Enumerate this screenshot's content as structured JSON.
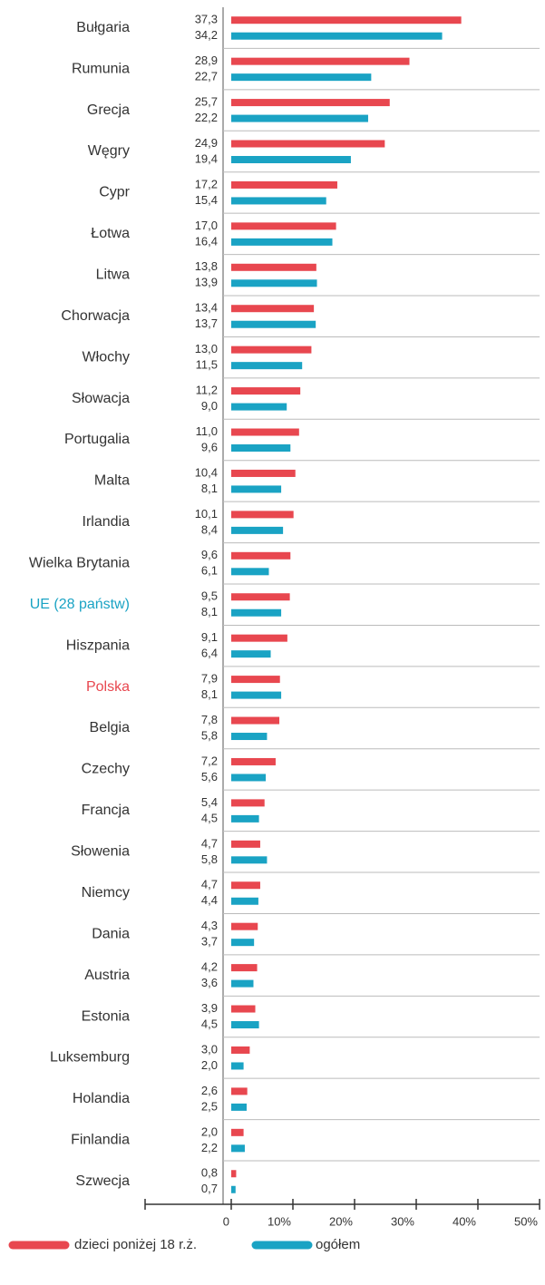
{
  "chart_data": {
    "type": "bar",
    "orientation": "horizontal",
    "categories": [
      "Bułgaria",
      "Rumunia",
      "Grecja",
      "Węgry",
      "Cypr",
      "Łotwa",
      "Litwa",
      "Chorwacja",
      "Włochy",
      "Słowacja",
      "Portugalia",
      "Malta",
      "Irlandia",
      "Wielka Brytania",
      "UE (28 państw)",
      "Hiszpania",
      "Polska",
      "Belgia",
      "Czechy",
      "Francja",
      "Słowenia",
      "Niemcy",
      "Dania",
      "Austria",
      "Estonia",
      "Luksemburg",
      "Holandia",
      "Finlandia",
      "Szwecja"
    ],
    "label_colors": [
      "#333333",
      "#333333",
      "#333333",
      "#333333",
      "#333333",
      "#333333",
      "#333333",
      "#333333",
      "#333333",
      "#333333",
      "#333333",
      "#333333",
      "#333333",
      "#333333",
      "#1aa3c4",
      "#333333",
      "#e8474f",
      "#333333",
      "#333333",
      "#333333",
      "#333333",
      "#333333",
      "#333333",
      "#333333",
      "#333333",
      "#333333",
      "#333333",
      "#333333",
      "#333333"
    ],
    "series": [
      {
        "name": "dzieci poniżej 18 r.ż.",
        "color": "#e8474f",
        "values": [
          37.3,
          28.9,
          25.7,
          24.9,
          17.2,
          17.0,
          13.8,
          13.4,
          13.0,
          11.2,
          11.0,
          10.4,
          10.1,
          9.6,
          9.5,
          9.1,
          7.9,
          7.8,
          7.2,
          5.4,
          4.7,
          4.7,
          4.3,
          4.2,
          3.9,
          3.0,
          2.6,
          2.0,
          0.8
        ],
        "value_labels": [
          "37,3",
          "28,9",
          "25,7",
          "24,9",
          "17,2",
          "17,0",
          "13,8",
          "13,4",
          "13,0",
          "11,2",
          "11,0",
          "10,4",
          "10,1",
          "9,6",
          "9,5",
          "9,1",
          "7,9",
          "7,8",
          "7,2",
          "5,4",
          "4,7",
          "4,7",
          "4,3",
          "4,2",
          "3,9",
          "3,0",
          "2,6",
          "2,0",
          "0,8"
        ]
      },
      {
        "name": "ogółem",
        "color": "#1aa3c4",
        "values": [
          34.2,
          22.7,
          22.2,
          19.4,
          15.4,
          16.4,
          13.9,
          13.7,
          11.5,
          9.0,
          9.6,
          8.1,
          8.4,
          6.1,
          8.1,
          6.4,
          8.1,
          5.8,
          5.6,
          4.5,
          5.8,
          4.4,
          3.7,
          3.6,
          4.5,
          2.0,
          2.5,
          2.2,
          0.7
        ],
        "value_labels": [
          "34,2",
          "22,7",
          "22,2",
          "19,4",
          "15,4",
          "16,4",
          "13,9",
          "13,7",
          "11,5",
          "9,0",
          "9,6",
          "8,1",
          "8,4",
          "6,1",
          "8,1",
          "6,4",
          "8,1",
          "5,8",
          "5,6",
          "4,5",
          "5,8",
          "4,4",
          "3,7",
          "3,6",
          "4,5",
          "2,0",
          "2,5",
          "2,2",
          "0,7"
        ]
      }
    ],
    "xlim": [
      0,
      50
    ],
    "xticks": [
      0,
      {
        "value": 10,
        "label": "10%"
      },
      {
        "value": 20,
        "label": "20%"
      },
      {
        "value": 30,
        "label": "30%"
      },
      {
        "value": 40,
        "label": "40%"
      },
      {
        "value": 50,
        "label": "50%"
      }
    ],
    "legend": "bottom-left"
  }
}
